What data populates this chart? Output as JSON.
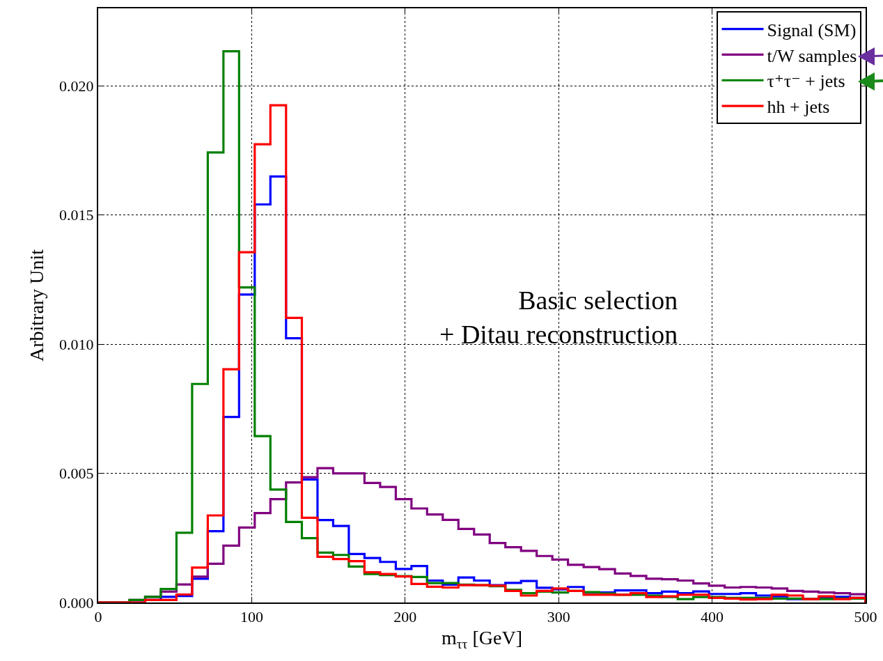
{
  "chart_data": {
    "type": "histogram",
    "xlabel": "m$_{ττ}$ [GeV]",
    "ylabel": "Arbitrary Unit",
    "annotations": [
      "Basic selection\n+ Ditau reconstruction"
    ],
    "bins": [
      0,
      10.2,
      20.4,
      30.6,
      40.8,
      51.0,
      61.2,
      71.4,
      81.6,
      91.8,
      102.0,
      112.2,
      122.4,
      132.7,
      142.9,
      153.1,
      163.3,
      173.5,
      183.7,
      193.9,
      204.1,
      214.3,
      224.5,
      234.7,
      244.9,
      255.1,
      265.3,
      275.5,
      285.7,
      295.9,
      306.1,
      316.3,
      326.5,
      336.7,
      346.9,
      357.1,
      367.3,
      377.6,
      387.8,
      398.0,
      408.2,
      418.4,
      428.6,
      438.8,
      449.0,
      459.2,
      469.4,
      479.6,
      489.8,
      500
    ],
    "series": [
      {
        "name": "Signal (SM)",
        "color": "#0000ff",
        "values": [
          0,
          0,
          0,
          0.0001,
          0.00022,
          0.00025,
          0.00092,
          0.00276,
          0.00718,
          0.01192,
          0.01541,
          0.01649,
          0.01023,
          0.00476,
          0.00319,
          0.00296,
          0.00188,
          0.00172,
          0.00157,
          0.0013,
          0.00141,
          0.00085,
          0.00069,
          0.00097,
          0.00085,
          0.00067,
          0.00076,
          0.00083,
          0.00057,
          0.00051,
          0.0006,
          0.00039,
          0.00039,
          0.00047,
          0.00047,
          0.00036,
          0.00042,
          0.00036,
          0.00043,
          0.00033,
          0.00033,
          0.00036,
          0.00027,
          0.00024,
          0.00013,
          0.00013,
          0.00018,
          0.00022,
          0.00018
        ]
      },
      {
        "name": "t/W samples",
        "color": "#800080",
        "values": [
          0,
          0,
          0.0001,
          0.00022,
          0.00042,
          0.0007,
          0.001,
          0.0015,
          0.0022,
          0.0029,
          0.00346,
          0.004,
          0.00465,
          0.00485,
          0.0052,
          0.005,
          0.005,
          0.00463,
          0.00447,
          0.004,
          0.00364,
          0.00341,
          0.0032,
          0.00285,
          0.00263,
          0.0023,
          0.00214,
          0.002,
          0.0018,
          0.00166,
          0.00146,
          0.00137,
          0.00129,
          0.00112,
          0.00103,
          0.00092,
          0.0009,
          0.00085,
          0.00074,
          0.00065,
          0.00058,
          0.0006,
          0.00058,
          0.00054,
          0.00045,
          0.00042,
          0.00039,
          0.00036,
          0.00032
        ]
      },
      {
        "name": "τ⁺τ⁻ + jets",
        "color": "#008000",
        "values": [
          0,
          0,
          0.0001,
          0.00022,
          0.00052,
          0.0027,
          0.00846,
          0.01742,
          0.02134,
          0.0122,
          0.00644,
          0.00437,
          0.00312,
          0.00249,
          0.00193,
          0.00184,
          0.00139,
          0.0011,
          0.00106,
          0.00102,
          0.00099,
          0.00075,
          0.00075,
          0.00069,
          0.00067,
          0.00063,
          0.00049,
          0.00036,
          0.00042,
          0.00039,
          0.00045,
          0.0004,
          0.00035,
          0.0003,
          0.0003,
          0.00027,
          0.00021,
          0.00013,
          0.00021,
          0.00021,
          0.00018,
          0.00018,
          0.00018,
          0.00015,
          0.00015,
          0.00013,
          0.00013,
          0.00015,
          0.00015
        ]
      },
      {
        "name": "hh + jets",
        "color": "#ff0000",
        "values": [
          0,
          0,
          0,
          0.0001,
          0.0001,
          0.00031,
          0.00135,
          0.00337,
          0.00903,
          0.01356,
          0.01774,
          0.01925,
          0.01102,
          0.00328,
          0.00177,
          0.00168,
          0.0016,
          0.00117,
          0.0011,
          0.00101,
          0.00072,
          0.00061,
          0.00058,
          0.00067,
          0.00067,
          0.00065,
          0.00045,
          0.00027,
          0.00045,
          0.00054,
          0.00045,
          0.0003,
          0.0003,
          0.0003,
          0.00036,
          0.00021,
          0.00024,
          0.0003,
          0.0003,
          0.00018,
          0.00015,
          0.00012,
          0.00013,
          0.0003,
          0.00027,
          0.00013,
          0.00024,
          0.00013,
          0.00018
        ]
      }
    ],
    "xlim": [
      0,
      500
    ],
    "xticks": [
      0,
      100,
      200,
      300,
      400,
      500
    ],
    "ylim": [
      0,
      0.023
    ],
    "yticks": [
      {
        "value": 0,
        "label": "0.000"
      },
      {
        "value": 0.005,
        "label": "0.005"
      },
      {
        "value": 0.01,
        "label": "0.010"
      },
      {
        "value": 0.015,
        "label": "0.015"
      },
      {
        "value": 0.02,
        "label": "0.020"
      }
    ],
    "grid": true,
    "legend": "top right",
    "line_style": "solid"
  }
}
